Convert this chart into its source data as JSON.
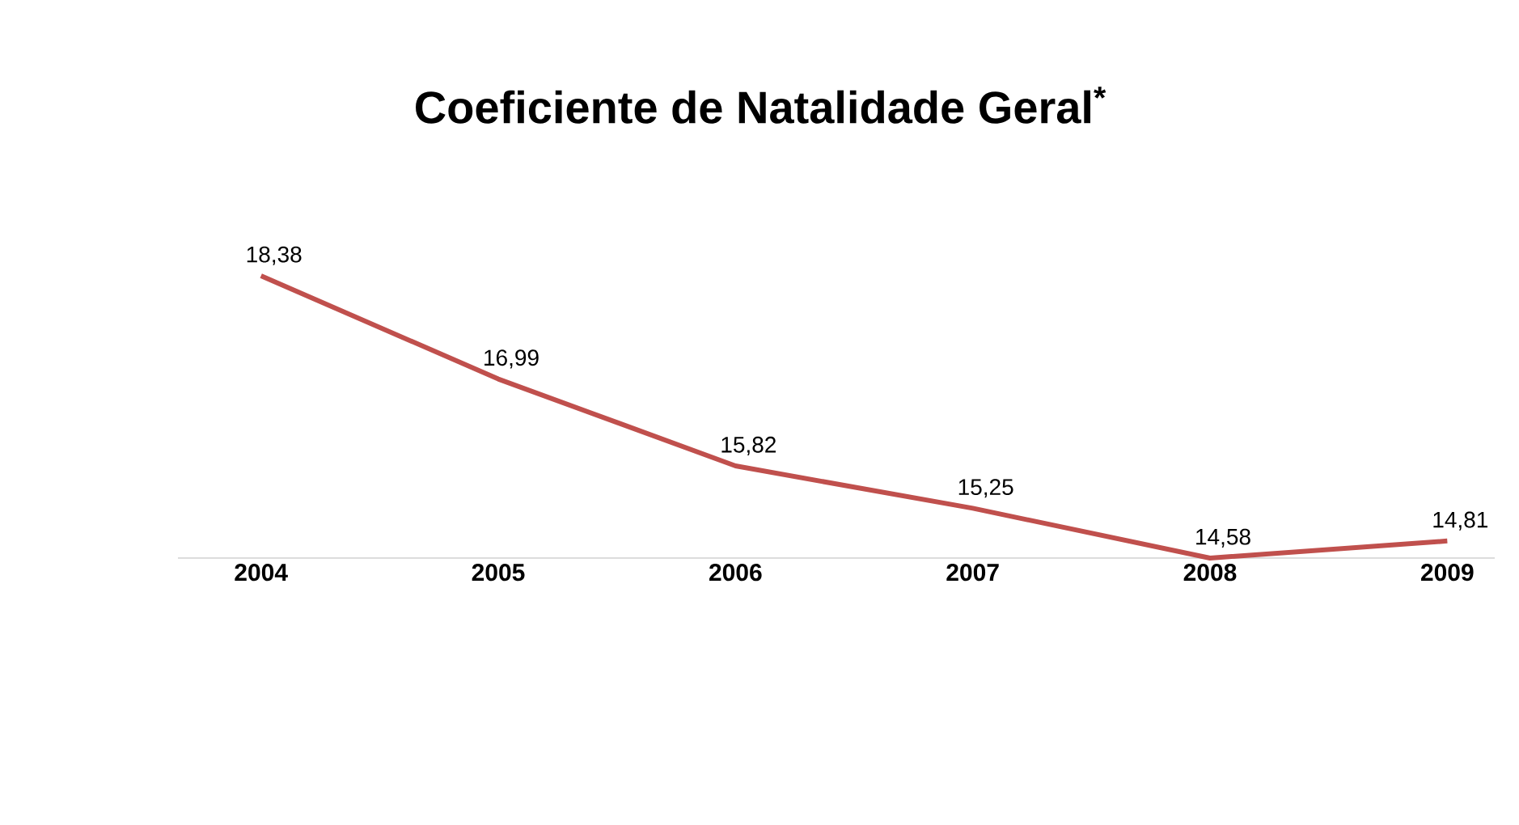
{
  "chart_data": {
    "type": "line",
    "title": "Coeficiente de Natalidade Geral$^{*}$",
    "categories": [
      "2004",
      "2005",
      "2006",
      "2007",
      "2008",
      "2009"
    ],
    "series": [
      {
        "color": "#c0504d",
        "values": [
          18.38,
          16.99,
          15.82,
          15.25,
          14.58,
          14.81
        ],
        "value_labels": [
          "18,38",
          "16,99",
          "15,82",
          "15,25",
          "14,58",
          "14,81"
        ]
      }
    ],
    "tick_labels": "x",
    "grid": false,
    "marker": "none",
    "line_style": "solid"
  }
}
